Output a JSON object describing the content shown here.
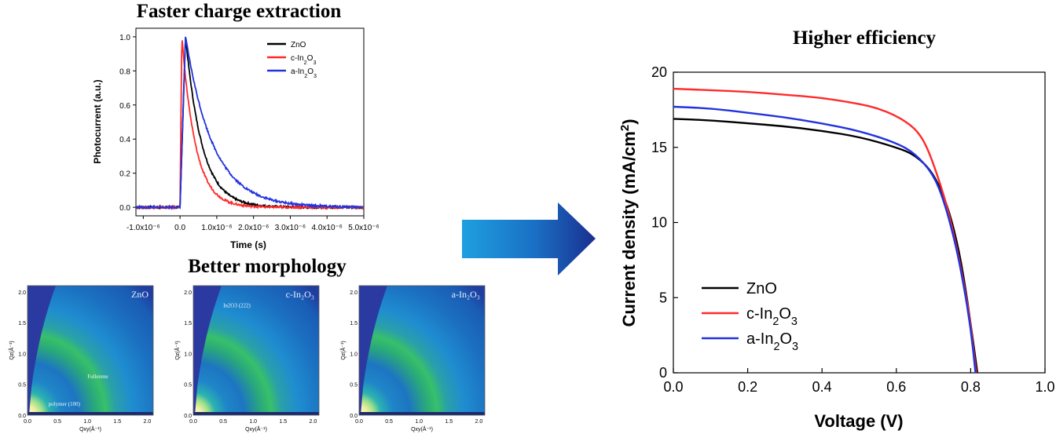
{
  "titles": {
    "transient": "Faster charge extraction",
    "morphology": "Better morphology",
    "efficiency": "Higher efficiency"
  },
  "colors": {
    "ZnO": "#000000",
    "c-In2O3": "#ff2a2a",
    "a-In2O3": "#2233dd",
    "arrow_dark": "#1a2f8f",
    "arrow_light": "#1e9fe0"
  },
  "chart_data": [
    {
      "type": "line",
      "title": "Faster charge extraction",
      "xlabel": "Time (s)",
      "ylabel": "Photocurrent (a.u.)",
      "xlim": [
        -1.2e-06,
        5e-06
      ],
      "ylim": [
        -0.05,
        1.05
      ],
      "xticks": [
        -1e-06,
        0.0,
        1e-06,
        2e-06,
        3e-06,
        4e-06,
        5e-06
      ],
      "xtick_labels": [
        "-1.0x10⁻⁶",
        "0.0",
        "1.0x10⁻⁶",
        "2.0x10⁻⁶",
        "3.0x10⁻⁶",
        "4.0x10⁻⁶",
        "5.0x10⁻⁶"
      ],
      "yticks": [
        0.0,
        0.2,
        0.4,
        0.6,
        0.8,
        1.0
      ],
      "ytick_labels": [
        "0.0",
        "0.2",
        "0.4",
        "0.6",
        "0.8",
        "1.0"
      ],
      "legend_position": "top-right",
      "series": [
        {
          "name": "ZnO",
          "name_sub": "",
          "legend": [
            "ZnO"
          ],
          "color": "#000000",
          "peak_t": 1.5e-07,
          "tau": 4.5e-07
        },
        {
          "name": "c-In2O3",
          "legend": [
            "c-In",
            "2",
            "O",
            "3"
          ],
          "color": "#ff2a2a",
          "peak_t": 5e-08,
          "tau": 3.7e-07
        },
        {
          "name": "a-In2O3",
          "legend": [
            "a-In",
            "2",
            "O",
            "3"
          ],
          "color": "#2233dd",
          "peak_t": 1.5e-07,
          "tau": 7.5e-07
        }
      ]
    },
    {
      "type": "line",
      "title": "Higher efficiency",
      "xlabel": "Voltage (V)",
      "ylabel": "Current density (mA/cm²)",
      "xlim": [
        0.0,
        1.0
      ],
      "ylim": [
        0,
        20
      ],
      "xticks": [
        0.0,
        0.2,
        0.4,
        0.6,
        0.8,
        1.0
      ],
      "xtick_labels": [
        "0.0",
        "0.2",
        "0.4",
        "0.6",
        "0.8",
        "1.0"
      ],
      "yticks": [
        0,
        5,
        10,
        15,
        20
      ],
      "ytick_labels": [
        "0",
        "5",
        "10",
        "15",
        "20"
      ],
      "legend_position": "bottom-left",
      "series": [
        {
          "name": "ZnO",
          "legend": [
            "ZnO"
          ],
          "color": "#000000",
          "jsc": 16.9,
          "voc": 0.818,
          "x": [
            0.0,
            0.1,
            0.2,
            0.3,
            0.4,
            0.5,
            0.6,
            0.65,
            0.7,
            0.74,
            0.77,
            0.79,
            0.8,
            0.81,
            0.818
          ],
          "y": [
            16.9,
            16.8,
            16.6,
            16.4,
            16.1,
            15.7,
            15.0,
            14.5,
            13.3,
            11.0,
            8.0,
            5.0,
            3.2,
            1.5,
            0.0
          ]
        },
        {
          "name": "c-In2O3",
          "legend": [
            "c-In",
            "2",
            "O",
            "3"
          ],
          "color": "#ff2a2a",
          "jsc": 18.9,
          "voc": 0.815,
          "x": [
            0.0,
            0.1,
            0.2,
            0.3,
            0.4,
            0.5,
            0.55,
            0.6,
            0.65,
            0.68,
            0.71,
            0.74,
            0.77,
            0.79,
            0.8,
            0.815
          ],
          "y": [
            18.9,
            18.8,
            18.7,
            18.5,
            18.3,
            17.9,
            17.6,
            17.1,
            16.3,
            15.2,
            13.2,
            10.8,
            7.5,
            4.8,
            3.2,
            0.0
          ]
        },
        {
          "name": "a-In2O3",
          "legend": [
            "a-In",
            "2",
            "O",
            "3"
          ],
          "color": "#2233dd",
          "jsc": 17.7,
          "voc": 0.813,
          "x": [
            0.0,
            0.1,
            0.2,
            0.3,
            0.4,
            0.5,
            0.6,
            0.65,
            0.7,
            0.73,
            0.76,
            0.78,
            0.8,
            0.813
          ],
          "y": [
            17.7,
            17.6,
            17.3,
            17.0,
            16.6,
            16.1,
            15.3,
            14.6,
            13.2,
            11.3,
            8.5,
            6.0,
            3.0,
            0.0
          ]
        }
      ]
    },
    {
      "type": "heatmap",
      "title": "Better morphology",
      "panels": [
        {
          "label": "ZnO",
          "annotations": [
            {
              "text": "Fullerene",
              "q": [
                1.0,
                0.6
              ]
            },
            {
              "text": "polymer (100)",
              "q": [
                0.35,
                0.15
              ]
            }
          ]
        },
        {
          "label": "c-In₂O₃",
          "annotations": [
            {
              "text": "In2O3 (222)",
              "q": [
                0.5,
                1.75
              ]
            }
          ]
        },
        {
          "label": "a-In₂O₃",
          "annotations": []
        }
      ],
      "xlabel": "Qxy(Å⁻¹)",
      "ylabel": "Qz(Å⁻¹)",
      "xlim": [
        0.0,
        2.1
      ],
      "ylim": [
        0.0,
        2.1
      ],
      "xticks": [
        0.0,
        0.5,
        1.0,
        1.5,
        2.0
      ],
      "xtick_labels": [
        "0.0",
        "0.5",
        "1.0",
        "1.5",
        "2.0"
      ],
      "yticks": [
        0.0,
        0.5,
        1.0,
        1.5,
        2.0
      ],
      "ytick_labels": [
        "0.0",
        "0.5",
        "1.0",
        "1.5",
        "2.0"
      ]
    }
  ]
}
